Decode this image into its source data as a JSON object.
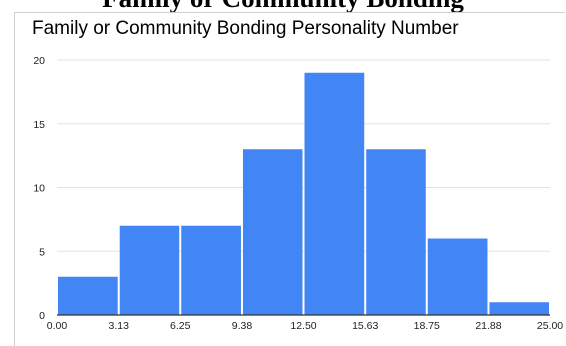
{
  "header_fragment": "Family or Community Bonding",
  "chart_data": {
    "type": "bar",
    "subtype": "histogram",
    "title": "Family or Community Bonding Personality Number",
    "xlabel": "",
    "ylabel": "",
    "bin_edges": [
      0.0,
      3.13,
      6.25,
      9.38,
      12.5,
      15.63,
      18.75,
      21.88,
      25.0
    ],
    "x_tick_labels": [
      "0.00",
      "3.13",
      "6.25",
      "9.38",
      "12.50",
      "15.63",
      "18.75",
      "21.88",
      "25.00"
    ],
    "values": [
      3,
      7,
      7,
      13,
      19,
      13,
      6,
      1
    ],
    "y_ticks": [
      0,
      5,
      10,
      15,
      20
    ],
    "ylim": [
      0,
      20
    ],
    "grid": true,
    "legend": "none",
    "bar_color": "#4285f4"
  }
}
